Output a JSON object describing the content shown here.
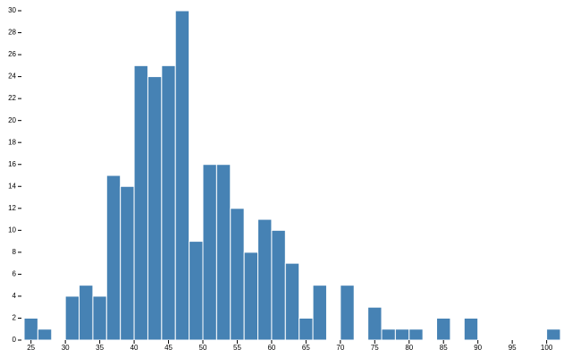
{
  "chart_data": {
    "type": "histogram",
    "bins": [
      24,
      26,
      28,
      30,
      32,
      34,
      36,
      38,
      40,
      42,
      44,
      46,
      48,
      50,
      52,
      54,
      56,
      58,
      60,
      62,
      64,
      66,
      68,
      70,
      72,
      74,
      76,
      78,
      80,
      82,
      84,
      86,
      88,
      90,
      92,
      94,
      96,
      98,
      100,
      102
    ],
    "values": [
      2,
      1,
      0,
      4,
      5,
      4,
      15,
      14,
      25,
      24,
      25,
      30,
      9,
      16,
      16,
      12,
      8,
      11,
      10,
      7,
      2,
      5,
      0,
      5,
      0,
      3,
      1,
      1,
      1,
      0,
      2,
      0,
      2,
      0,
      0,
      0,
      0,
      0,
      1
    ],
    "color": "#4682b4",
    "xlim": [
      24,
      102
    ],
    "xticks": [
      25,
      30,
      35,
      40,
      45,
      50,
      55,
      60,
      65,
      70,
      75,
      80,
      85,
      90,
      95,
      100
    ],
    "ylim": [
      0,
      30
    ],
    "yticks": [
      0,
      2,
      4,
      6,
      8,
      10,
      12,
      14,
      16,
      18,
      20,
      22,
      24,
      26,
      28,
      30
    ]
  }
}
